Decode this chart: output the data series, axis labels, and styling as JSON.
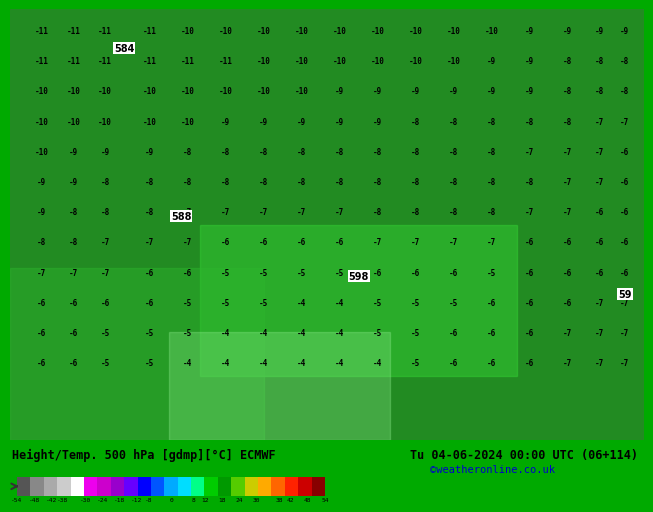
{
  "title_left": "Height/Temp. 500 hPa [gdmp][°C] ECMWF",
  "title_right": "Tu 04-06-2024 00:00 UTC (06+114)",
  "credit": "©weatheronline.co.uk",
  "colorbar_ticks": [
    -54,
    -48,
    -42,
    -38,
    -30,
    -24,
    -18,
    -12,
    -8,
    0,
    8,
    12,
    18,
    24,
    30,
    38,
    42,
    48,
    54
  ],
  "colorbar_tick_labels": [
    "-54",
    "-48",
    "-42",
    "-38",
    "-30",
    "-24",
    "-18",
    "-12",
    "-8",
    "0",
    "8",
    "12",
    "18",
    "24",
    "30",
    "38",
    "42",
    "48",
    "54"
  ],
  "colorbar_colors": [
    "#555555",
    "#888888",
    "#aaaaaa",
    "#cccccc",
    "#ffffff",
    "#dd00dd",
    "#cc00cc",
    "#990099",
    "#ff00ff",
    "#0000ff",
    "#0055ff",
    "#0099ff",
    "#00ccff",
    "#00ffff",
    "#00cc00",
    "#009900",
    "#33cc00",
    "#66ff00",
    "#ffff00",
    "#ffcc00",
    "#ff9900",
    "#ff6600",
    "#ff0000",
    "#cc0000",
    "#990000"
  ],
  "bg_color": "#00aa00",
  "map_bg": "#228B22",
  "bottom_bar_color": "#00cc00",
  "fig_width": 6.34,
  "fig_height": 4.9
}
